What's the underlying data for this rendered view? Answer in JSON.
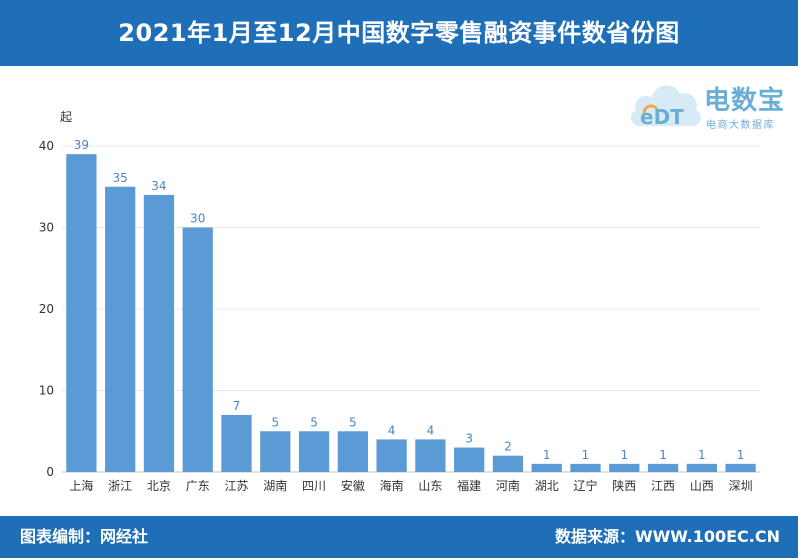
{
  "header": {
    "title": "2021年1月至12月中国数字零售融资事件数省份图"
  },
  "footer": {
    "left": "图表编制：网经社",
    "right": "数据来源：WWW.100EC.CN"
  },
  "logo": {
    "badge_text": "eDT",
    "name": "电数宝",
    "subtitle": "电商大数据库"
  },
  "colors": {
    "brand": "#1f6fb8",
    "bar": "#5b9bd5",
    "label": "#4a86c5",
    "grid": "#e8e8e8"
  },
  "chart_data": {
    "type": "bar",
    "title": "2021年1月至12月中国数字零售融资事件数省份图",
    "xlabel": "",
    "ylabel": "起",
    "categories": [
      "上海",
      "浙江",
      "北京",
      "广东",
      "江苏",
      "湖南",
      "四川",
      "安徽",
      "海南",
      "山东",
      "福建",
      "河南",
      "湖北",
      "辽宁",
      "陕西",
      "江西",
      "山西",
      "深圳"
    ],
    "values": [
      39,
      35,
      34,
      30,
      7,
      5,
      5,
      5,
      4,
      4,
      3,
      2,
      1,
      1,
      1,
      1,
      1,
      1
    ],
    "ylim": [
      0,
      40
    ],
    "yticks": [
      0,
      10,
      20,
      30,
      40
    ],
    "grid": true,
    "data_labels": true
  }
}
